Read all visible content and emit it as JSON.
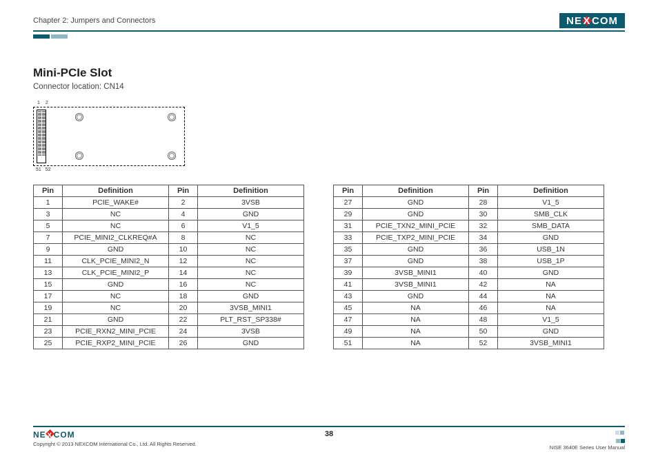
{
  "header": {
    "chapter": "Chapter 2: Jumpers and Connectors",
    "logo_text_a": "NE",
    "logo_text_x": "X",
    "logo_text_b": "COM"
  },
  "section": {
    "title": "Mini-PCIe Slot",
    "subtitle": "Connector location: CN14"
  },
  "diagram": {
    "top_labels": [
      "1",
      "2"
    ],
    "bottom_labels": [
      "51",
      "52"
    ]
  },
  "table_headers": {
    "pin": "Pin",
    "def": "Definition"
  },
  "table_left": [
    [
      "1",
      "PCIE_WAKE#",
      "2",
      "3VSB"
    ],
    [
      "3",
      "NC",
      "4",
      "GND"
    ],
    [
      "5",
      "NC",
      "6",
      "V1_5"
    ],
    [
      "7",
      "PCIE_MINI2_CLKREQ#A",
      "8",
      "NC"
    ],
    [
      "9",
      "GND",
      "10",
      "NC"
    ],
    [
      "11",
      "CLK_PCIE_MINI2_N",
      "12",
      "NC"
    ],
    [
      "13",
      "CLK_PCIE_MINI2_P",
      "14",
      "NC"
    ],
    [
      "15",
      "GND",
      "16",
      "NC"
    ],
    [
      "17",
      "NC",
      "18",
      "GND"
    ],
    [
      "19",
      "NC",
      "20",
      "3VSB_MINI1"
    ],
    [
      "21",
      "GND",
      "22",
      "PLT_RST_SP338#"
    ],
    [
      "23",
      "PCIE_RXN2_MINI_PCIE",
      "24",
      "3VSB"
    ],
    [
      "25",
      "PCIE_RXP2_MINI_PCIE",
      "26",
      "GND"
    ]
  ],
  "table_right": [
    [
      "27",
      "GND",
      "28",
      "V1_5"
    ],
    [
      "29",
      "GND",
      "30",
      "SMB_CLK"
    ],
    [
      "31",
      "PCIE_TXN2_MINI_PCIE",
      "32",
      "SMB_DATA"
    ],
    [
      "33",
      "PCIE_TXP2_MINI_PCIE",
      "34",
      "GND"
    ],
    [
      "35",
      "GND",
      "36",
      "USB_1N"
    ],
    [
      "37",
      "GND",
      "38",
      "USB_1P"
    ],
    [
      "39",
      "3VSB_MINI1",
      "40",
      "GND"
    ],
    [
      "41",
      "3VSB_MINI1",
      "42",
      "NA"
    ],
    [
      "43",
      "GND",
      "44",
      "NA"
    ],
    [
      "45",
      "NA",
      "46",
      "NA"
    ],
    [
      "47",
      "NA",
      "48",
      "V1_5"
    ],
    [
      "49",
      "NA",
      "50",
      "GND"
    ],
    [
      "51",
      "NA",
      "52",
      "3VSB_MINI1"
    ]
  ],
  "footer": {
    "copyright": "Copyright © 2013 NEXCOM International Co., Ltd. All Rights Reserved.",
    "page_number": "38",
    "manual": "NISE 3640E Series User Manual"
  },
  "colors": {
    "brand_dark": "#0b5a6e",
    "brand_light": "#8fb8c2",
    "accent_red": "#d22"
  }
}
